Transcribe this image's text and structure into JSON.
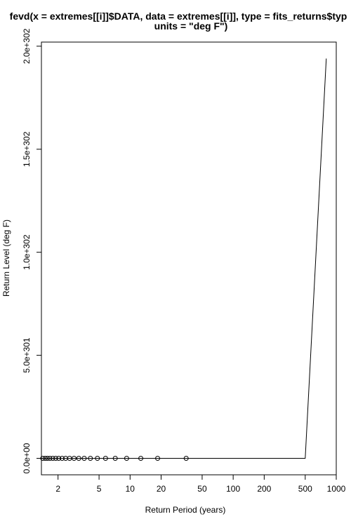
{
  "chart_data": {
    "type": "scatter",
    "title_line1": "fevd(x = extremes[[i]]$DATA, data = extremes[[i]], type = fits_returns$typ",
    "title_line2": "units = \"deg F\")",
    "xlabel": "Return Period (years)",
    "ylabel": "Return Level (deg F)",
    "x_scale": "log",
    "xlim": [
      1.38,
      1000
    ],
    "ylim": [
      -8e+300,
      2.02e+302
    ],
    "x_ticks": [
      2,
      5,
      10,
      20,
      50,
      100,
      200,
      500,
      1000
    ],
    "x_tick_labels": [
      "2",
      "5",
      "10",
      "20",
      "50",
      "100",
      "200",
      "500",
      "1000"
    ],
    "y_ticks": [
      0,
      5e+301,
      1e+302,
      1.5e+302,
      2e+302
    ],
    "y_tick_labels": [
      "0.0e+00",
      "5.0e+301",
      "1.0e+302",
      "1.5e+302",
      "2.0e+302"
    ],
    "grid": false,
    "series": [
      {
        "kind": "points",
        "x": [
          1.42,
          1.5,
          1.58,
          1.67,
          1.78,
          1.9,
          2.03,
          2.19,
          2.37,
          2.59,
          2.86,
          3.18,
          3.59,
          4.12,
          4.82,
          5.78,
          7.18,
          9.26,
          12.7,
          18.5,
          35.0
        ],
        "y": [
          0,
          0,
          0,
          0,
          0,
          0,
          0,
          0,
          0,
          0,
          0,
          0,
          0,
          0,
          0,
          0,
          0,
          0,
          0,
          0,
          0
        ]
      },
      {
        "kind": "line",
        "x": [
          1.38,
          500,
          800
        ],
        "y": [
          0,
          0,
          1.94e+302
        ]
      }
    ]
  }
}
